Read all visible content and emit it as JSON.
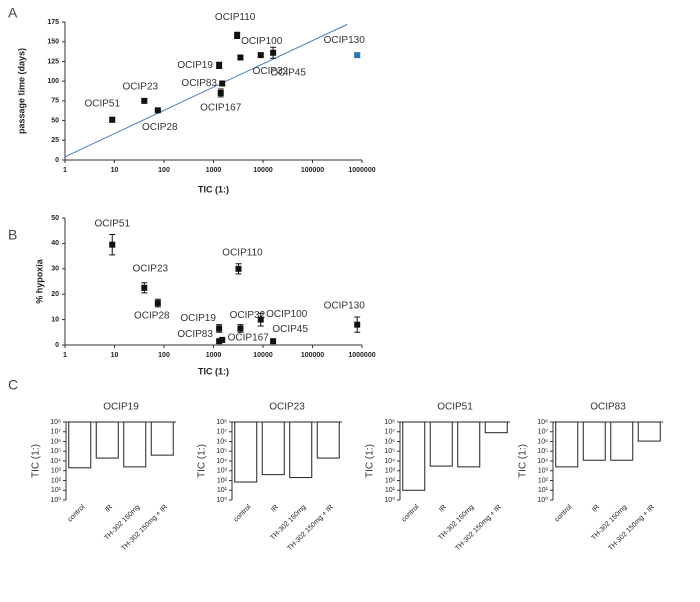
{
  "chart_data": [
    {
      "type": "scatter",
      "panel_label": "A",
      "xlabel": "TIC (1:)",
      "ylabel": "passage time (days)",
      "xscale": "log",
      "xlim": [
        1,
        1000000
      ],
      "xticks": [
        1,
        10,
        100,
        1000,
        10000,
        100000,
        1000000
      ],
      "ylim": [
        0,
        175
      ],
      "yticks": [
        0,
        25,
        50,
        75,
        100,
        125,
        150,
        175
      ],
      "labels": [
        "OCIP51",
        "OCIP23",
        "OCIP28",
        "OCIP19",
        "OCIP83",
        "OCIP167",
        "OCIP110",
        "OCIP100",
        "OCIP32",
        "OCIP45",
        "OCIP130"
      ],
      "x": [
        9,
        40,
        75,
        1300,
        1500,
        1400,
        3000,
        9000,
        3500,
        16000,
        800000
      ],
      "values": [
        51,
        75,
        63,
        120,
        97,
        85,
        158,
        133,
        130,
        136,
        133
      ],
      "errors": [
        3,
        2,
        1,
        4,
        3,
        5,
        4,
        2,
        2,
        7,
        2
      ],
      "point_colors": [
        "#111111",
        "#111111",
        "#111111",
        "#111111",
        "#111111",
        "#111111",
        "#111111",
        "#111111",
        "#111111",
        "#111111",
        "#2e75b6"
      ],
      "fit": {
        "x": [
          1,
          500000
        ],
        "y": [
          4,
          172
        ],
        "color": "#4a7ebb"
      }
    },
    {
      "type": "scatter",
      "panel_label": "B",
      "xlabel": "TIC (1:)",
      "ylabel": "% hypoxia",
      "xscale": "log",
      "xlim": [
        1,
        1000000
      ],
      "xticks": [
        1,
        10,
        100,
        1000,
        10000,
        100000,
        1000000
      ],
      "ylim": [
        0,
        50
      ],
      "yticks": [
        0,
        10,
        20,
        30,
        40,
        50
      ],
      "labels": [
        "OCIP51",
        "OCIP23",
        "OCIP28",
        "OCIP110",
        "OCIP19",
        "OCIP83",
        "OCIP167",
        "OCIP32",
        "OCIP100",
        "OCIP45",
        "OCIP130"
      ],
      "x": [
        9,
        40,
        75,
        3200,
        1300,
        1300,
        1500,
        3500,
        9000,
        16000,
        800000
      ],
      "values": [
        39.5,
        22.5,
        16.5,
        30,
        6.5,
        1.5,
        2,
        6.5,
        10,
        1.5,
        8
      ],
      "errors": [
        4,
        2,
        1.5,
        2,
        1.5,
        null,
        null,
        1.5,
        2.5,
        null,
        3
      ],
      "point_colors": [
        "#111111",
        "#111111",
        "#111111",
        "#111111",
        "#111111",
        "#111111",
        "#111111",
        "#111111",
        "#111111",
        "#111111",
        "#111111"
      ]
    },
    {
      "type": "bar",
      "panel_label": "C",
      "title": "OCIP19",
      "ylabel": "TIC (1:)",
      "yscale": "log",
      "ylim": [
        1,
        100000000
      ],
      "yticks": [
        {
          "value": 1,
          "label": "10⁰"
        },
        {
          "value": 10,
          "label": "10¹"
        },
        {
          "value": 100,
          "label": "10²"
        },
        {
          "value": 1000,
          "label": "10³"
        },
        {
          "value": 10000,
          "label": "10⁴"
        },
        {
          "value": 100000,
          "label": "10⁵"
        },
        {
          "value": 1000000,
          "label": "10⁶"
        },
        {
          "value": 10000000,
          "label": "10⁷"
        },
        {
          "value": 100000000,
          "label": "10⁸"
        }
      ],
      "categories": [
        "control",
        "IR",
        "TH-302 150mg",
        "TH-302 150mg + IR"
      ],
      "values": [
        2000,
        20000,
        2500,
        40000
      ],
      "color": "#ffffff"
    },
    {
      "type": "bar",
      "title": "OCIP23",
      "ylabel": "TIC (1:)",
      "yscale": "log",
      "ylim": [
        1,
        100000000
      ],
      "yticks": [
        {
          "value": 1,
          "label": "10⁰"
        },
        {
          "value": 10,
          "label": "10¹"
        },
        {
          "value": 100,
          "label": "10²"
        },
        {
          "value": 1000,
          "label": "10³"
        },
        {
          "value": 10000,
          "label": "10⁴"
        },
        {
          "value": 100000,
          "label": "10⁵"
        },
        {
          "value": 1000000,
          "label": "10⁶"
        },
        {
          "value": 10000000,
          "label": "10⁷"
        },
        {
          "value": 100000000,
          "label": "10⁸"
        }
      ],
      "categories": [
        "control",
        "IR",
        "TH-302 150mg",
        "TH-302 150mg + IR"
      ],
      "values": [
        70,
        400,
        200,
        20000
      ],
      "color": "#ffffff"
    },
    {
      "type": "bar",
      "title": "OCIP51",
      "ylabel": "TIC (1:)",
      "yscale": "log",
      "ylim": [
        1,
        100000000
      ],
      "yticks": [
        {
          "value": 1,
          "label": "10⁰"
        },
        {
          "value": 10,
          "label": "10¹"
        },
        {
          "value": 100,
          "label": "10²"
        },
        {
          "value": 1000,
          "label": "10³"
        },
        {
          "value": 10000,
          "label": "10⁴"
        },
        {
          "value": 100000,
          "label": "10⁵"
        },
        {
          "value": 1000000,
          "label": "10⁶"
        },
        {
          "value": 10000000,
          "label": "10⁷"
        },
        {
          "value": 100000000,
          "label": "10⁸"
        }
      ],
      "categories": [
        "control",
        "IR",
        "TH-302 150mg",
        "TH-302 150mg + IR"
      ],
      "values": [
        10,
        3000,
        2500,
        8000000
      ],
      "color": "#ffffff"
    },
    {
      "type": "bar",
      "title": "OCIP83",
      "ylabel": "TIC (1:)",
      "yscale": "log",
      "ylim": [
        1,
        100000000
      ],
      "yticks": [
        {
          "value": 1,
          "label": "10⁰"
        },
        {
          "value": 10,
          "label": "10¹"
        },
        {
          "value": 100,
          "label": "10²"
        },
        {
          "value": 1000,
          "label": "10³"
        },
        {
          "value": 10000,
          "label": "10⁴"
        },
        {
          "value": 100000,
          "label": "10⁵"
        },
        {
          "value": 1000000,
          "label": "10⁶"
        },
        {
          "value": 10000000,
          "label": "10⁷"
        },
        {
          "value": 100000000,
          "label": "10⁸"
        }
      ],
      "categories": [
        "control",
        "IR",
        "TH-302 150mg",
        "TH-302 150mg + IR"
      ],
      "values": [
        2500,
        12000,
        12000,
        1100000
      ],
      "color": "#ffffff"
    }
  ]
}
